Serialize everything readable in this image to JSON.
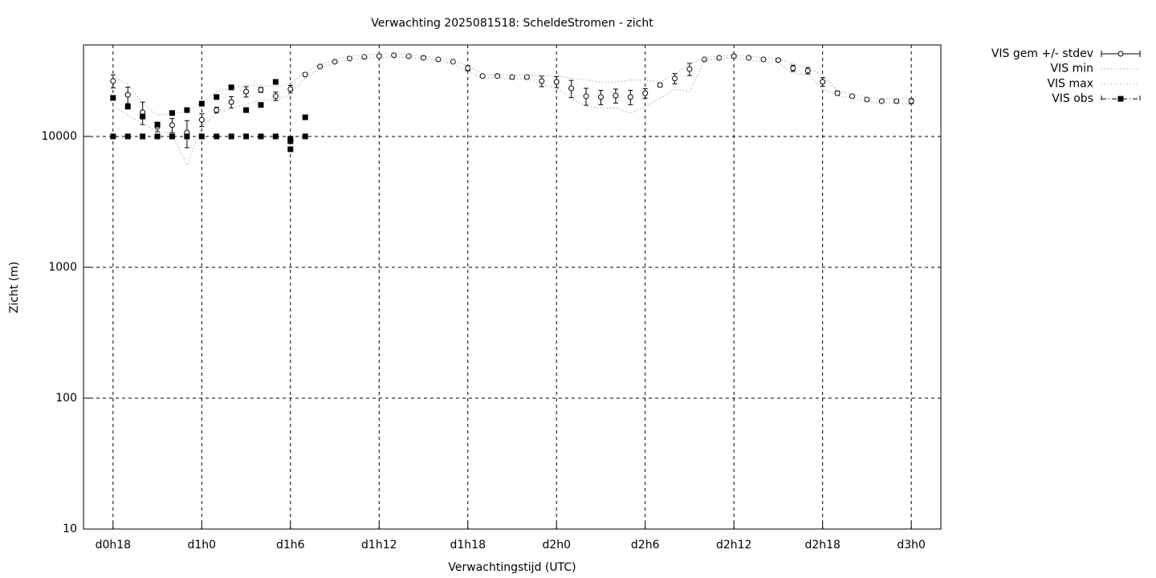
{
  "chart_data": {
    "type": "line",
    "title": "Verwachting 2025081518: ScheldeStromen - zicht",
    "xlabel": "Verwachtingstijd (UTC)",
    "ylabel": "Zicht (m)",
    "xlim": [
      16,
      74
    ],
    "ylim": [
      10,
      50000
    ],
    "ylog": true,
    "grid": true,
    "legend": "outside-right",
    "xticks": [
      {
        "value": 18,
        "label": "d0h18"
      },
      {
        "value": 24,
        "label": "d1h0"
      },
      {
        "value": 30,
        "label": "d1h6"
      },
      {
        "value": 36,
        "label": "d1h12"
      },
      {
        "value": 42,
        "label": "d1h18"
      },
      {
        "value": 48,
        "label": "d2h0"
      },
      {
        "value": 54,
        "label": "d2h6"
      },
      {
        "value": 60,
        "label": "d2h12"
      },
      {
        "value": 66,
        "label": "d2h18"
      },
      {
        "value": 72,
        "label": "d3h0"
      }
    ],
    "yticks": [
      10,
      100,
      1000,
      10000
    ],
    "series": [
      {
        "name": "VIS gem +/- stdev",
        "color": "#000000",
        "style": "errorbars",
        "x": [
          18,
          19,
          20,
          21,
          22,
          23,
          24,
          25,
          26,
          27,
          28,
          29,
          30,
          31,
          32,
          33,
          34,
          35,
          36,
          37,
          38,
          39,
          40,
          41,
          42,
          43,
          44,
          45,
          46,
          47,
          48,
          49,
          50,
          51,
          52,
          53,
          54,
          55,
          56,
          57,
          58,
          59,
          60,
          61,
          62,
          63,
          64,
          65,
          66,
          67,
          68,
          69,
          70,
          71,
          72
        ],
        "values": [
          26500,
          20800,
          15300,
          11850,
          12200,
          10700,
          13400,
          15900,
          18300,
          22000,
          22700,
          20300,
          23000,
          29700,
          34200,
          37200,
          39400,
          40500,
          41000,
          41700,
          41000,
          39900,
          38800,
          37200,
          33200,
          28900,
          28900,
          28400,
          28400,
          26500,
          26100,
          23300,
          20300,
          20000,
          20500,
          20000,
          21400,
          24700,
          27700,
          32700,
          38800,
          39900,
          41000,
          39900,
          38800,
          38300,
          33200,
          31800,
          26100,
          21400,
          20300,
          19150,
          18600,
          18600,
          18600
        ],
        "stdev": [
          3000,
          3000,
          3000,
          1000,
          1500,
          2500,
          1500,
          800,
          1800,
          2000,
          1000,
          1500,
          1500,
          800,
          500,
          500,
          500,
          500,
          500,
          500,
          500,
          500,
          500,
          800,
          1500,
          500,
          800,
          1000,
          800,
          2500,
          2500,
          3500,
          3000,
          2500,
          2500,
          2500,
          1800,
          800,
          2500,
          3500,
          500,
          500,
          500,
          800,
          1000,
          800,
          1800,
          1800,
          2000,
          800,
          500,
          500,
          500,
          500,
          800
        ]
      },
      {
        "name": "VIS min",
        "color": "#999999",
        "style": "dotted",
        "x": [
          18,
          19,
          20,
          21,
          22,
          23,
          24,
          25,
          26,
          27,
          28,
          29,
          30,
          31,
          32,
          33,
          34,
          35,
          36,
          37,
          38,
          39,
          40,
          41,
          42,
          43,
          44,
          45,
          46,
          47,
          48,
          49,
          50,
          51,
          52,
          53,
          54,
          55,
          56,
          57,
          58,
          59,
          60,
          61,
          62,
          63,
          64,
          65,
          66,
          67,
          68,
          69,
          70,
          71,
          72
        ],
        "values": [
          17000,
          14500,
          12500,
          11000,
          10500,
          6000,
          12000,
          15000,
          16500,
          17500,
          19000,
          19000,
          21000,
          28000,
          33000,
          36500,
          38500,
          39500,
          40000,
          40500,
          40000,
          39000,
          38000,
          36000,
          31000,
          28000,
          28000,
          27500,
          27500,
          25000,
          23500,
          19500,
          17000,
          16500,
          16500,
          15000,
          17000,
          19500,
          23000,
          22000,
          38000,
          39000,
          40000,
          38500,
          37000,
          36500,
          30500,
          29500,
          23000,
          20500,
          19500,
          18500,
          18000,
          18000,
          17500
        ]
      },
      {
        "name": "VIS max",
        "color": "#999999",
        "style": "dotted",
        "x": [
          18,
          19,
          20,
          21,
          22,
          23,
          24,
          25,
          26,
          27,
          28,
          29,
          30,
          31,
          32,
          33,
          34,
          35,
          36,
          37,
          38,
          39,
          40,
          41,
          42,
          43,
          44,
          45,
          46,
          47,
          48,
          49,
          50,
          51,
          52,
          53,
          54,
          55,
          56,
          57,
          58,
          59,
          60,
          61,
          62,
          63,
          64,
          65,
          66,
          67,
          68,
          69,
          70,
          71,
          72
        ],
        "values": [
          29000,
          25000,
          18000,
          14500,
          15000,
          15500,
          18000,
          22000,
          23500,
          24500,
          24500,
          24000,
          25500,
          31000,
          35500,
          38500,
          41000,
          42000,
          42500,
          43000,
          42500,
          41000,
          40000,
          38500,
          34500,
          30000,
          29500,
          29500,
          29500,
          29000,
          29000,
          28000,
          27000,
          26000,
          26000,
          27000,
          27000,
          26000,
          30000,
          36000,
          40000,
          41000,
          42000,
          41000,
          40000,
          39500,
          36000,
          33000,
          29500,
          22500,
          21000,
          20000,
          19500,
          19500,
          19500
        ]
      },
      {
        "name": "VIS obs",
        "color": "#000000",
        "style": "points",
        "x": [
          18,
          18,
          19,
          19,
          20,
          20,
          21,
          21,
          22,
          22,
          23,
          23,
          24,
          24,
          25,
          25,
          26,
          26,
          27,
          27,
          28,
          28,
          29,
          29,
          30,
          30,
          30,
          31,
          31
        ],
        "values": [
          19700,
          10000,
          16900,
          10000,
          14200,
          10000,
          12300,
          10000,
          15100,
          10000,
          15900,
          10000,
          17800,
          10000,
          20000,
          10000,
          23700,
          10000,
          15900,
          10000,
          17400,
          10000,
          26100,
          10000,
          9600,
          9200,
          7980,
          14000,
          10000
        ]
      }
    ]
  }
}
